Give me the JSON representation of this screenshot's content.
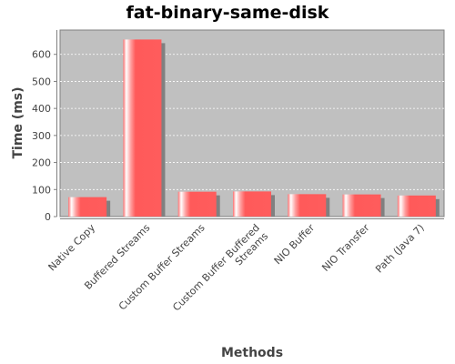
{
  "chart_data": {
    "type": "bar",
    "title": "fat-binary-same-disk",
    "xlabel": "Methods",
    "ylabel": "Time (ms)",
    "categories": [
      [
        "Native Copy"
      ],
      [
        "Buffered Streams"
      ],
      [
        "Custom Buffer Streams"
      ],
      [
        "Custom Buffer Buffered",
        "Streams"
      ],
      [
        "NIO Buffer"
      ],
      [
        "NIO Transfer"
      ],
      [
        "Path (Java 7)"
      ]
    ],
    "values": [
      72,
      655,
      92,
      93,
      83,
      82,
      78
    ],
    "ylim": [
      0,
      690
    ],
    "yticks": [
      0,
      100,
      200,
      300,
      400,
      500,
      600
    ],
    "grid": true,
    "legend": "none",
    "colors": {
      "plot_background": "#c0c0c0",
      "gridline": "#ffffff",
      "bar_main": "#ff5a5a",
      "bar_highlight": "#ffffff",
      "bar_shadow": "#808080",
      "axis": "#808080"
    }
  }
}
